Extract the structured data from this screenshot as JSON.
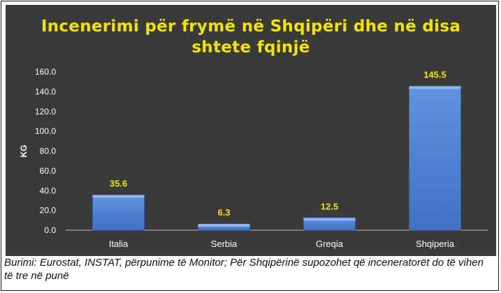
{
  "chart_data": {
    "type": "bar",
    "title_lines": [
      "Incenerimi për frymë në Shqipëri dhe në disa",
      "shtete fqinjë"
    ],
    "categories": [
      "Italia",
      "Serbia",
      "Greqia",
      "Shqiperia"
    ],
    "values": [
      35.6,
      6.3,
      12.5,
      145.5
    ],
    "data_labels": [
      "35.6",
      "6.3",
      "12.5",
      "145.5"
    ],
    "ylabel": "KG",
    "ylim": [
      0,
      160
    ],
    "yticks": [
      "0.0",
      "20.0",
      "40.0",
      "60.0",
      "80.0",
      "100.0",
      "120.0",
      "140.0",
      "160.0"
    ],
    "ytick_values": [
      0,
      20,
      40,
      60,
      80,
      100,
      120,
      140,
      160
    ],
    "grid": false,
    "colors": {
      "background": "#3a3a3a",
      "bar": "#4a7fd0",
      "bar_top": "#8db4ee",
      "title": "#f2e400",
      "data_label": "#f2e400",
      "text": "#ffffff"
    }
  },
  "caption": "Burimi: Eurostat, INSTAT, përpunime të Monitor; Për Shqipërinë supozohet që inceneratorët do të vihen të tre në punë"
}
